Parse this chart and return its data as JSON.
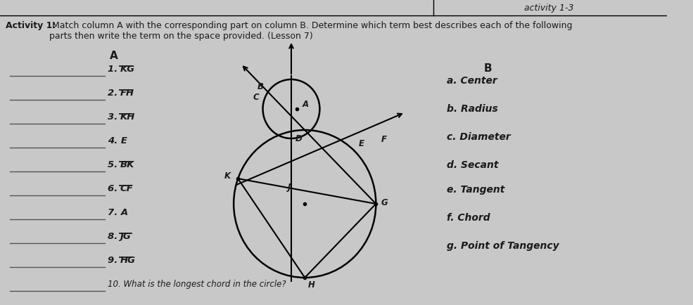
{
  "title_bold": "Activity 1:",
  "title_normal": " Match column A with the corresponding part on column B. Determine which term best describes each of the following\nparts then write the term on the space provided. (Lesson 7)",
  "header_top_right": "activity 1-3",
  "col_a_header": "A",
  "col_b_header": "B",
  "col_a_items": [
    [
      "1. ",
      "KG",
      true
    ],
    [
      "2. ",
      "FH",
      true
    ],
    [
      "3. ",
      "KH",
      true
    ],
    [
      "4. E",
      "",
      false
    ],
    [
      "5. ",
      "BK",
      true
    ],
    [
      "6. ",
      "CF",
      true
    ],
    [
      "7. A",
      "",
      false
    ],
    [
      "8. ",
      "JG",
      true
    ],
    [
      "9. ",
      "HG",
      true
    ]
  ],
  "col_b_items": [
    "a. Center",
    "b. Radius",
    "c. Diameter",
    "d. Secant",
    "e. Tangent",
    "f. Chord",
    "g. Point of Tangency"
  ],
  "question_10": "10. What is the longest chord in the circle?",
  "bg_color": "#c8c8c8",
  "text_color": "#1a1a1a",
  "line_color": "#555555"
}
